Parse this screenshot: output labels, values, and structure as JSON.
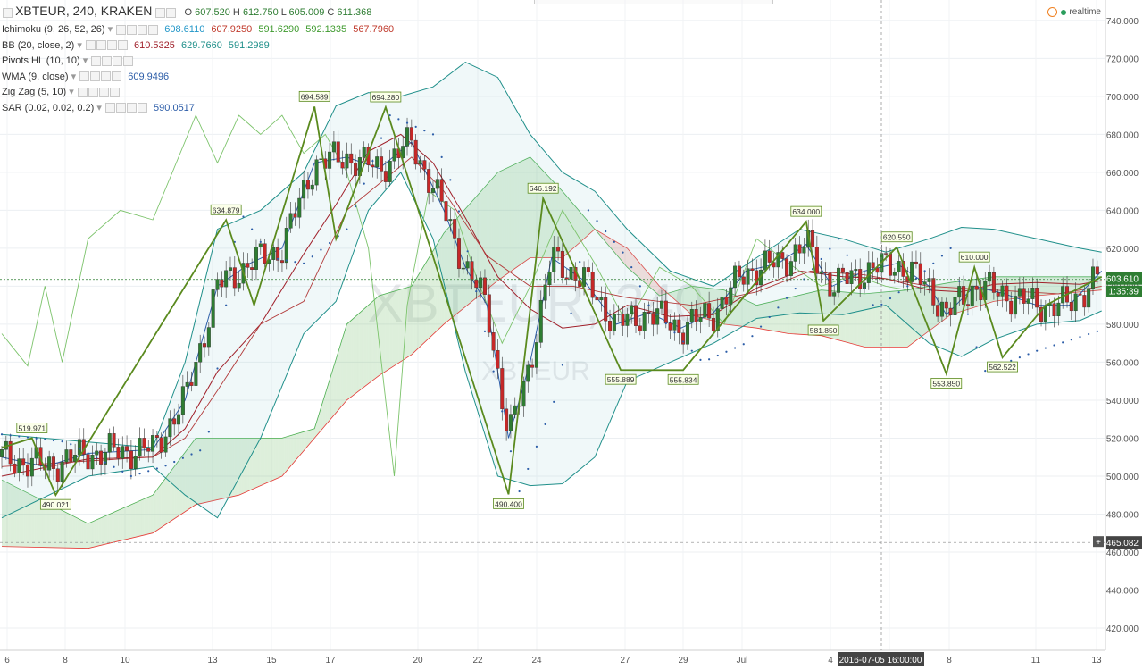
{
  "header": {
    "symbol": "XBTEUR, 240, KRAKEN",
    "o_label": "O",
    "o": "607.520",
    "h_label": "H",
    "h": "612.750",
    "l_label": "L",
    "l": "605.009",
    "c_label": "C",
    "c": "611.368"
  },
  "indicators": [
    {
      "name": "Ichimoku (9, 26, 52, 26)",
      "values": [
        {
          "v": "608.6110",
          "color": "#2196c8"
        },
        {
          "v": "607.9250",
          "color": "#c0392b"
        },
        {
          "v": "591.6290",
          "color": "#3e9a2e"
        },
        {
          "v": "592.1335",
          "color": "#3e9a2e"
        },
        {
          "v": "567.7960",
          "color": "#c0392b"
        }
      ]
    },
    {
      "name": "BB (20, close, 2)",
      "values": [
        {
          "v": "610.5325",
          "color": "#a0202a"
        },
        {
          "v": "629.7660",
          "color": "#1f8f8a"
        },
        {
          "v": "591.2989",
          "color": "#1f8f8a"
        }
      ]
    },
    {
      "name": "Pivots HL (10, 10)",
      "values": []
    },
    {
      "name": "WMA (9, close)",
      "values": [
        {
          "v": "609.9496",
          "color": "#2c5da8"
        }
      ]
    },
    {
      "name": "Zig Zag (5, 10)",
      "values": []
    },
    {
      "name": "SAR (0.02, 0.02, 0.2)",
      "values": [
        {
          "v": "590.0517",
          "color": "#2c5da8"
        }
      ]
    }
  ],
  "realtime_label": "realtime",
  "watermark": {
    "big": "XBTEUR, 240",
    "small": "XBTEUR"
  },
  "price_label": "603.610",
  "countdown_label": "1:35:39",
  "crosshair_price": "465.082",
  "crosshair_time": "2016-07-05 16:00:00",
  "colors": {
    "up": "#2e7d32",
    "down": "#c62828",
    "zigzag": "#5a8a1e",
    "bb": "#1f8f8a",
    "wma": "#2c5da8",
    "sar": "#2c5da8"
  },
  "chart_data": {
    "type": "line",
    "ylim": [
      410,
      750
    ],
    "y_ticks": [
      "420.000",
      "440.000",
      "460.000",
      "480.000",
      "500.000",
      "520.000",
      "540.000",
      "560.000",
      "580.000",
      "600.000",
      "620.000",
      "640.000",
      "660.000",
      "680.000",
      "700.000",
      "720.000",
      "740.000"
    ],
    "x_ticks": [
      "6",
      "8",
      "10",
      "13",
      "15",
      "17",
      "20",
      "22",
      "24",
      "27",
      "29",
      "Jul",
      "4",
      "6",
      "8",
      "11",
      "13"
    ],
    "zigzag": [
      {
        "x": 0,
        "y": 515
      },
      {
        "x": 14,
        "y": 519.971
      },
      {
        "x": 25,
        "y": 490.021
      },
      {
        "x": 104,
        "y": 634.879
      },
      {
        "x": 117,
        "y": 590
      },
      {
        "x": 145,
        "y": 694.589
      },
      {
        "x": 155,
        "y": 625
      },
      {
        "x": 178,
        "y": 694.28
      },
      {
        "x": 235,
        "y": 490.4
      },
      {
        "x": 251,
        "y": 646.192
      },
      {
        "x": 287,
        "y": 555.889
      },
      {
        "x": 316,
        "y": 555.834
      },
      {
        "x": 373,
        "y": 634.0
      },
      {
        "x": 381,
        "y": 581.85
      },
      {
        "x": 415,
        "y": 620.55
      },
      {
        "x": 438,
        "y": 553.85
      },
      {
        "x": 451,
        "y": 610.0
      },
      {
        "x": 464,
        "y": 562.522
      },
      {
        "x": 484,
        "y": 590
      },
      {
        "x": 510,
        "y": 605
      }
    ],
    "zigzag_labels": [
      "519.971",
      "490.021",
      "634.879",
      "694.589",
      "694.280",
      "490.400",
      "646.192",
      "555.889",
      "555.834",
      "634.000",
      "581.850",
      "620.550",
      "553.850",
      "610.000",
      "562.522"
    ],
    "bb_upper": [
      {
        "x": 0,
        "y": 522
      },
      {
        "x": 40,
        "y": 518
      },
      {
        "x": 70,
        "y": 515
      },
      {
        "x": 85,
        "y": 560
      },
      {
        "x": 100,
        "y": 630
      },
      {
        "x": 120,
        "y": 640
      },
      {
        "x": 140,
        "y": 660
      },
      {
        "x": 155,
        "y": 695
      },
      {
        "x": 170,
        "y": 702
      },
      {
        "x": 185,
        "y": 700
      },
      {
        "x": 200,
        "y": 705
      },
      {
        "x": 215,
        "y": 718
      },
      {
        "x": 230,
        "y": 710
      },
      {
        "x": 245,
        "y": 680
      },
      {
        "x": 260,
        "y": 660
      },
      {
        "x": 275,
        "y": 650
      },
      {
        "x": 290,
        "y": 630
      },
      {
        "x": 310,
        "y": 608
      },
      {
        "x": 330,
        "y": 600
      },
      {
        "x": 350,
        "y": 615
      },
      {
        "x": 370,
        "y": 630
      },
      {
        "x": 390,
        "y": 625
      },
      {
        "x": 410,
        "y": 618
      },
      {
        "x": 430,
        "y": 625
      },
      {
        "x": 445,
        "y": 631
      },
      {
        "x": 460,
        "y": 630
      },
      {
        "x": 480,
        "y": 625
      },
      {
        "x": 500,
        "y": 620
      },
      {
        "x": 510,
        "y": 618
      }
    ],
    "bb_lower": [
      {
        "x": 0,
        "y": 478
      },
      {
        "x": 40,
        "y": 500
      },
      {
        "x": 70,
        "y": 505
      },
      {
        "x": 85,
        "y": 490
      },
      {
        "x": 100,
        "y": 478
      },
      {
        "x": 120,
        "y": 520
      },
      {
        "x": 140,
        "y": 575
      },
      {
        "x": 155,
        "y": 592
      },
      {
        "x": 170,
        "y": 640
      },
      {
        "x": 185,
        "y": 660
      },
      {
        "x": 200,
        "y": 625
      },
      {
        "x": 215,
        "y": 555
      },
      {
        "x": 230,
        "y": 500
      },
      {
        "x": 245,
        "y": 495
      },
      {
        "x": 260,
        "y": 496
      },
      {
        "x": 275,
        "y": 510
      },
      {
        "x": 290,
        "y": 550
      },
      {
        "x": 310,
        "y": 560
      },
      {
        "x": 330,
        "y": 570
      },
      {
        "x": 350,
        "y": 583
      },
      {
        "x": 370,
        "y": 586
      },
      {
        "x": 390,
        "y": 585
      },
      {
        "x": 410,
        "y": 590
      },
      {
        "x": 430,
        "y": 570
      },
      {
        "x": 445,
        "y": 563
      },
      {
        "x": 460,
        "y": 572
      },
      {
        "x": 480,
        "y": 580
      },
      {
        "x": 500,
        "y": 582
      },
      {
        "x": 510,
        "y": 587
      }
    ],
    "bb_mid": [
      {
        "x": 0,
        "y": 500
      },
      {
        "x": 40,
        "y": 509
      },
      {
        "x": 70,
        "y": 510
      },
      {
        "x": 85,
        "y": 525
      },
      {
        "x": 100,
        "y": 555
      },
      {
        "x": 120,
        "y": 580
      },
      {
        "x": 140,
        "y": 617
      },
      {
        "x": 155,
        "y": 643
      },
      {
        "x": 170,
        "y": 671
      },
      {
        "x": 185,
        "y": 680
      },
      {
        "x": 200,
        "y": 665
      },
      {
        "x": 215,
        "y": 636
      },
      {
        "x": 230,
        "y": 605
      },
      {
        "x": 245,
        "y": 588
      },
      {
        "x": 260,
        "y": 578
      },
      {
        "x": 275,
        "y": 580
      },
      {
        "x": 290,
        "y": 590
      },
      {
        "x": 310,
        "y": 584
      },
      {
        "x": 330,
        "y": 585
      },
      {
        "x": 350,
        "y": 599
      },
      {
        "x": 370,
        "y": 608
      },
      {
        "x": 390,
        "y": 605
      },
      {
        "x": 410,
        "y": 604
      },
      {
        "x": 430,
        "y": 598
      },
      {
        "x": 445,
        "y": 597
      },
      {
        "x": 460,
        "y": 601
      },
      {
        "x": 480,
        "y": 602
      },
      {
        "x": 500,
        "y": 601
      },
      {
        "x": 510,
        "y": 603
      }
    ],
    "wma": [
      {
        "x": 0,
        "y": 510
      },
      {
        "x": 20,
        "y": 505
      },
      {
        "x": 40,
        "y": 512
      },
      {
        "x": 70,
        "y": 514
      },
      {
        "x": 85,
        "y": 540
      },
      {
        "x": 100,
        "y": 600
      },
      {
        "x": 115,
        "y": 612
      },
      {
        "x": 130,
        "y": 620
      },
      {
        "x": 145,
        "y": 665
      },
      {
        "x": 160,
        "y": 668
      },
      {
        "x": 175,
        "y": 662
      },
      {
        "x": 190,
        "y": 676
      },
      {
        "x": 205,
        "y": 640
      },
      {
        "x": 215,
        "y": 610
      },
      {
        "x": 225,
        "y": 590
      },
      {
        "x": 235,
        "y": 520
      },
      {
        "x": 245,
        "y": 560
      },
      {
        "x": 255,
        "y": 615
      },
      {
        "x": 270,
        "y": 603
      },
      {
        "x": 285,
        "y": 580
      },
      {
        "x": 300,
        "y": 586
      },
      {
        "x": 315,
        "y": 578
      },
      {
        "x": 330,
        "y": 586
      },
      {
        "x": 345,
        "y": 608
      },
      {
        "x": 360,
        "y": 612
      },
      {
        "x": 373,
        "y": 622
      },
      {
        "x": 385,
        "y": 600
      },
      {
        "x": 400,
        "y": 608
      },
      {
        "x": 415,
        "y": 612
      },
      {
        "x": 430,
        "y": 600
      },
      {
        "x": 438,
        "y": 585
      },
      {
        "x": 451,
        "y": 600
      },
      {
        "x": 465,
        "y": 596
      },
      {
        "x": 480,
        "y": 590
      },
      {
        "x": 495,
        "y": 590
      },
      {
        "x": 510,
        "y": 608
      }
    ],
    "kijun": [
      {
        "x": 0,
        "y": 505
      },
      {
        "x": 40,
        "y": 508
      },
      {
        "x": 70,
        "y": 510
      },
      {
        "x": 85,
        "y": 520
      },
      {
        "x": 100,
        "y": 545
      },
      {
        "x": 120,
        "y": 580
      },
      {
        "x": 140,
        "y": 592
      },
      {
        "x": 160,
        "y": 640
      },
      {
        "x": 190,
        "y": 668
      },
      {
        "x": 205,
        "y": 650
      },
      {
        "x": 225,
        "y": 616
      },
      {
        "x": 245,
        "y": 600
      },
      {
        "x": 265,
        "y": 600
      },
      {
        "x": 290,
        "y": 594
      },
      {
        "x": 320,
        "y": 590
      },
      {
        "x": 350,
        "y": 597
      },
      {
        "x": 375,
        "y": 608
      },
      {
        "x": 400,
        "y": 606
      },
      {
        "x": 430,
        "y": 600
      },
      {
        "x": 460,
        "y": 598
      },
      {
        "x": 490,
        "y": 596
      },
      {
        "x": 510,
        "y": 600
      }
    ],
    "chikou": [
      {
        "x": 0,
        "y": 575
      },
      {
        "x": 12,
        "y": 558
      },
      {
        "x": 20,
        "y": 600
      },
      {
        "x": 28,
        "y": 560
      },
      {
        "x": 40,
        "y": 625
      },
      {
        "x": 55,
        "y": 640
      },
      {
        "x": 70,
        "y": 635
      },
      {
        "x": 90,
        "y": 690
      },
      {
        "x": 100,
        "y": 665
      },
      {
        "x": 110,
        "y": 690
      },
      {
        "x": 120,
        "y": 680
      },
      {
        "x": 130,
        "y": 690
      },
      {
        "x": 140,
        "y": 670
      },
      {
        "x": 150,
        "y": 680
      },
      {
        "x": 160,
        "y": 660
      },
      {
        "x": 170,
        "y": 620
      },
      {
        "x": 182,
        "y": 500
      },
      {
        "x": 188,
        "y": 590
      },
      {
        "x": 198,
        "y": 650
      },
      {
        "x": 210,
        "y": 640
      },
      {
        "x": 220,
        "y": 605
      },
      {
        "x": 232,
        "y": 570
      },
      {
        "x": 245,
        "y": 600
      },
      {
        "x": 260,
        "y": 640
      },
      {
        "x": 275,
        "y": 612
      },
      {
        "x": 290,
        "y": 580
      },
      {
        "x": 305,
        "y": 610
      },
      {
        "x": 320,
        "y": 600
      },
      {
        "x": 335,
        "y": 580
      },
      {
        "x": 350,
        "y": 625
      },
      {
        "x": 365,
        "y": 612
      },
      {
        "x": 380,
        "y": 600
      },
      {
        "x": 395,
        "y": 606
      },
      {
        "x": 410,
        "y": 600
      },
      {
        "x": 420,
        "y": 598
      }
    ],
    "span_a": [
      {
        "x": 0,
        "y": 498
      },
      {
        "x": 40,
        "y": 475
      },
      {
        "x": 70,
        "y": 490
      },
      {
        "x": 90,
        "y": 520
      },
      {
        "x": 110,
        "y": 520
      },
      {
        "x": 130,
        "y": 520
      },
      {
        "x": 145,
        "y": 525
      },
      {
        "x": 160,
        "y": 580
      },
      {
        "x": 175,
        "y": 595
      },
      {
        "x": 190,
        "y": 600
      },
      {
        "x": 205,
        "y": 628
      },
      {
        "x": 230,
        "y": 660
      },
      {
        "x": 245,
        "y": 668
      },
      {
        "x": 260,
        "y": 650
      },
      {
        "x": 275,
        "y": 630
      },
      {
        "x": 290,
        "y": 610
      },
      {
        "x": 305,
        "y": 595
      },
      {
        "x": 320,
        "y": 600
      },
      {
        "x": 335,
        "y": 598
      },
      {
        "x": 350,
        "y": 590
      },
      {
        "x": 365,
        "y": 594
      },
      {
        "x": 380,
        "y": 598
      },
      {
        "x": 400,
        "y": 596
      },
      {
        "x": 420,
        "y": 598
      },
      {
        "x": 440,
        "y": 602
      },
      {
        "x": 460,
        "y": 605
      },
      {
        "x": 480,
        "y": 605
      },
      {
        "x": 500,
        "y": 605
      },
      {
        "x": 510,
        "y": 605
      }
    ],
    "span_b": [
      {
        "x": 0,
        "y": 463
      },
      {
        "x": 40,
        "y": 462
      },
      {
        "x": 70,
        "y": 470
      },
      {
        "x": 90,
        "y": 485
      },
      {
        "x": 110,
        "y": 490
      },
      {
        "x": 130,
        "y": 500
      },
      {
        "x": 145,
        "y": 520
      },
      {
        "x": 160,
        "y": 540
      },
      {
        "x": 175,
        "y": 553
      },
      {
        "x": 190,
        "y": 564
      },
      {
        "x": 205,
        "y": 580
      },
      {
        "x": 230,
        "y": 603
      },
      {
        "x": 245,
        "y": 615
      },
      {
        "x": 260,
        "y": 615
      },
      {
        "x": 275,
        "y": 630
      },
      {
        "x": 290,
        "y": 620
      },
      {
        "x": 305,
        "y": 600
      },
      {
        "x": 320,
        "y": 585
      },
      {
        "x": 335,
        "y": 580
      },
      {
        "x": 350,
        "y": 578
      },
      {
        "x": 365,
        "y": 575
      },
      {
        "x": 380,
        "y": 574
      },
      {
        "x": 400,
        "y": 568
      },
      {
        "x": 420,
        "y": 568
      },
      {
        "x": 440,
        "y": 585
      },
      {
        "x": 460,
        "y": 592
      },
      {
        "x": 480,
        "y": 595
      },
      {
        "x": 500,
        "y": 597
      },
      {
        "x": 510,
        "y": 598
      }
    ],
    "sar": [
      {
        "x": 0,
        "y": 522
      },
      {
        "x": 30,
        "y": 518
      },
      {
        "x": 60,
        "y": 500
      },
      {
        "x": 75,
        "y": 505
      },
      {
        "x": 95,
        "y": 515
      },
      {
        "x": 110,
        "y": 640
      },
      {
        "x": 125,
        "y": 615
      },
      {
        "x": 140,
        "y": 612
      },
      {
        "x": 160,
        "y": 630
      },
      {
        "x": 180,
        "y": 690
      },
      {
        "x": 200,
        "y": 680
      },
      {
        "x": 210,
        "y": 650
      },
      {
        "x": 240,
        "y": 492
      },
      {
        "x": 258,
        "y": 545
      },
      {
        "x": 272,
        "y": 640
      },
      {
        "x": 290,
        "y": 615
      },
      {
        "x": 300,
        "y": 590
      },
      {
        "x": 325,
        "y": 560
      },
      {
        "x": 345,
        "y": 570
      },
      {
        "x": 373,
        "y": 605
      },
      {
        "x": 388,
        "y": 625
      },
      {
        "x": 405,
        "y": 588
      },
      {
        "x": 420,
        "y": 600
      },
      {
        "x": 440,
        "y": 620
      },
      {
        "x": 455,
        "y": 555
      },
      {
        "x": 480,
        "y": 566
      },
      {
        "x": 510,
        "y": 577
      }
    ]
  }
}
